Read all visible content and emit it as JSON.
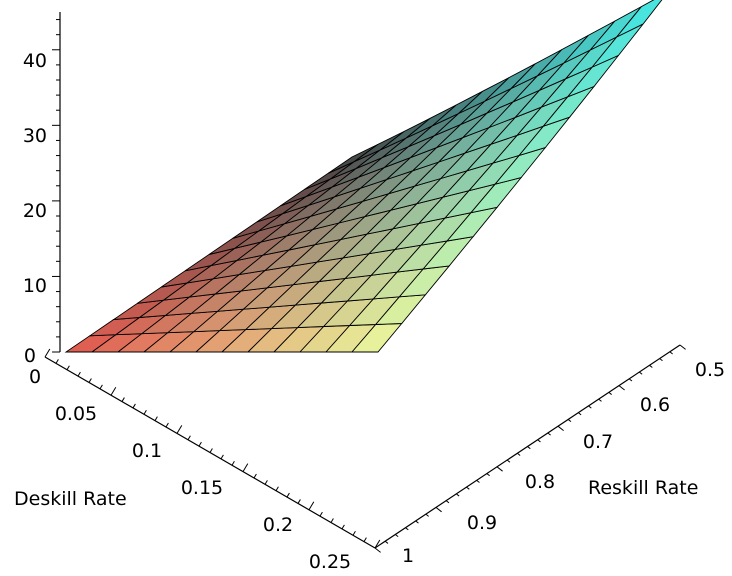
{
  "chart_data": {
    "type": "surface",
    "title": "",
    "xlabel": "Deskill Rate",
    "ylabel": "Reskill Rate",
    "zlabel": "",
    "x_range": [
      0,
      0.25
    ],
    "y_range": [
      1,
      0.5
    ],
    "z_range": [
      0,
      45
    ],
    "x_tick_labels": [
      "0",
      "0.05",
      "0.1",
      "0.15",
      "0.2",
      "0.25"
    ],
    "y_tick_labels": [
      "0.5",
      "0.6",
      "0.7",
      "0.8",
      "0.9",
      "1"
    ],
    "z_tick_labels": [
      "0",
      "10",
      "20",
      "30",
      "40"
    ],
    "grid": "12x12 wireframe mesh on surface",
    "surface_samples": {
      "x": [
        0,
        0.25
      ],
      "y": [
        1,
        0.5
      ],
      "z_corners": {
        "x0_y1": 0,
        "x0.25_y1": 0,
        "x0_y0.5": 0.5,
        "x0.25_y0.5": 45
      }
    },
    "colors": {
      "front_left": "#e65a50",
      "front_right": "#eef79a",
      "back_left": "#404040",
      "back_right": "#43ebe9",
      "mesh": "#000000"
    }
  }
}
